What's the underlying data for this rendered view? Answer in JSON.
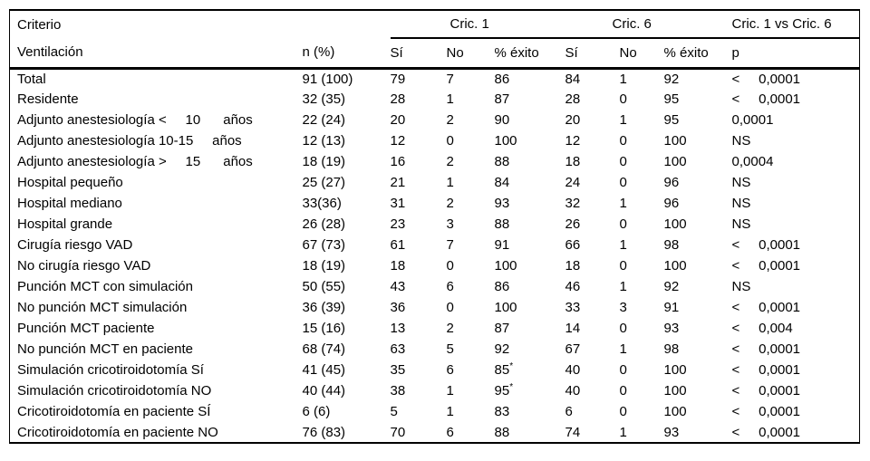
{
  "meta": {
    "language": "es",
    "colors": {
      "background": "#ffffff",
      "text": "#000000",
      "rule": "#000000"
    }
  },
  "table": {
    "group_header": {
      "criterio": "Criterio",
      "cric1": "Cric. 1",
      "cric6": "Cric. 6",
      "cric1_vs_cric6": "Cric. 1 vs Cric. 6"
    },
    "columns": [
      "Ventilación",
      "n (%)",
      "Sí",
      "No",
      "% éxito",
      "Sí",
      "No",
      "% éxito",
      "p"
    ],
    "rows": [
      [
        "Total",
        "91 (100)",
        "79",
        "7",
        "86",
        "84",
        "1",
        "92",
        "<     0,0001"
      ],
      [
        "Residente",
        "32 (35)",
        "28",
        "1",
        "87",
        "28",
        "0",
        "95",
        "<     0,0001"
      ],
      [
        "Adjunto anestesiología <     10      años",
        "22 (24)",
        "20",
        "2",
        "90",
        "20",
        "1",
        "95",
        "0,0001"
      ],
      [
        "Adjunto anestesiología 10-15     años",
        "12 (13)",
        "12",
        "0",
        "100",
        "12",
        "0",
        "100",
        "NS"
      ],
      [
        "Adjunto anestesiología >     15      años",
        "18 (19)",
        "16",
        "2",
        "88",
        "18",
        "0",
        "100",
        "0,0004"
      ],
      [
        "Hospital pequeño",
        "25 (27)",
        "21",
        "1",
        "84",
        "24",
        "0",
        "96",
        "NS"
      ],
      [
        "Hospital mediano",
        "33(36)",
        "31",
        "2",
        "93",
        "32",
        "1",
        "96",
        "NS"
      ],
      [
        "Hospital grande",
        "26 (28)",
        "23",
        "3",
        "88",
        "26",
        "0",
        "100",
        "NS"
      ],
      [
        "Cirugía riesgo VAD",
        "67 (73)",
        "61",
        "7",
        "91",
        "66",
        "1",
        "98",
        "<     0,0001"
      ],
      [
        "No cirugía riesgo VAD",
        "18 (19)",
        "18",
        "0",
        "100",
        "18",
        "0",
        "100",
        "<     0,0001"
      ],
      [
        "Punción MCT con simulación",
        "50 (55)",
        "43",
        "6",
        "86",
        "46",
        "1",
        "92",
        "NS"
      ],
      [
        "No punción MCT simulación",
        "36 (39)",
        "36",
        "0",
        "100",
        "33",
        "3",
        "91",
        "<     0,0001"
      ],
      [
        "Punción MCT paciente",
        "15 (16)",
        "13",
        "2",
        "87",
        "14",
        "0",
        "93",
        "<     0,004"
      ],
      [
        "No punción MCT en paciente",
        "68 (74)",
        "63",
        "5",
        "92",
        "67",
        "1",
        "98",
        "<     0,0001"
      ],
      [
        "Simulación cricotiroidotomía Sí",
        "41 (45)",
        "35",
        "6",
        "85*",
        "40",
        "0",
        "100",
        "<     0,0001"
      ],
      [
        "Simulación cricotiroidotomía NO",
        "40 (44)",
        "38",
        "1",
        "95*",
        "40",
        "0",
        "100",
        "<     0,0001"
      ],
      [
        "Cricotiroidotomía en paciente SÍ",
        "6 (6)",
        "5",
        "1",
        "83",
        "6",
        "0",
        "100",
        "<     0,0001"
      ],
      [
        "Cricotiroidotomía en paciente NO",
        "76 (83)",
        "70",
        "6",
        "88",
        "74",
        "1",
        "93",
        "<     0,0001"
      ]
    ]
  }
}
